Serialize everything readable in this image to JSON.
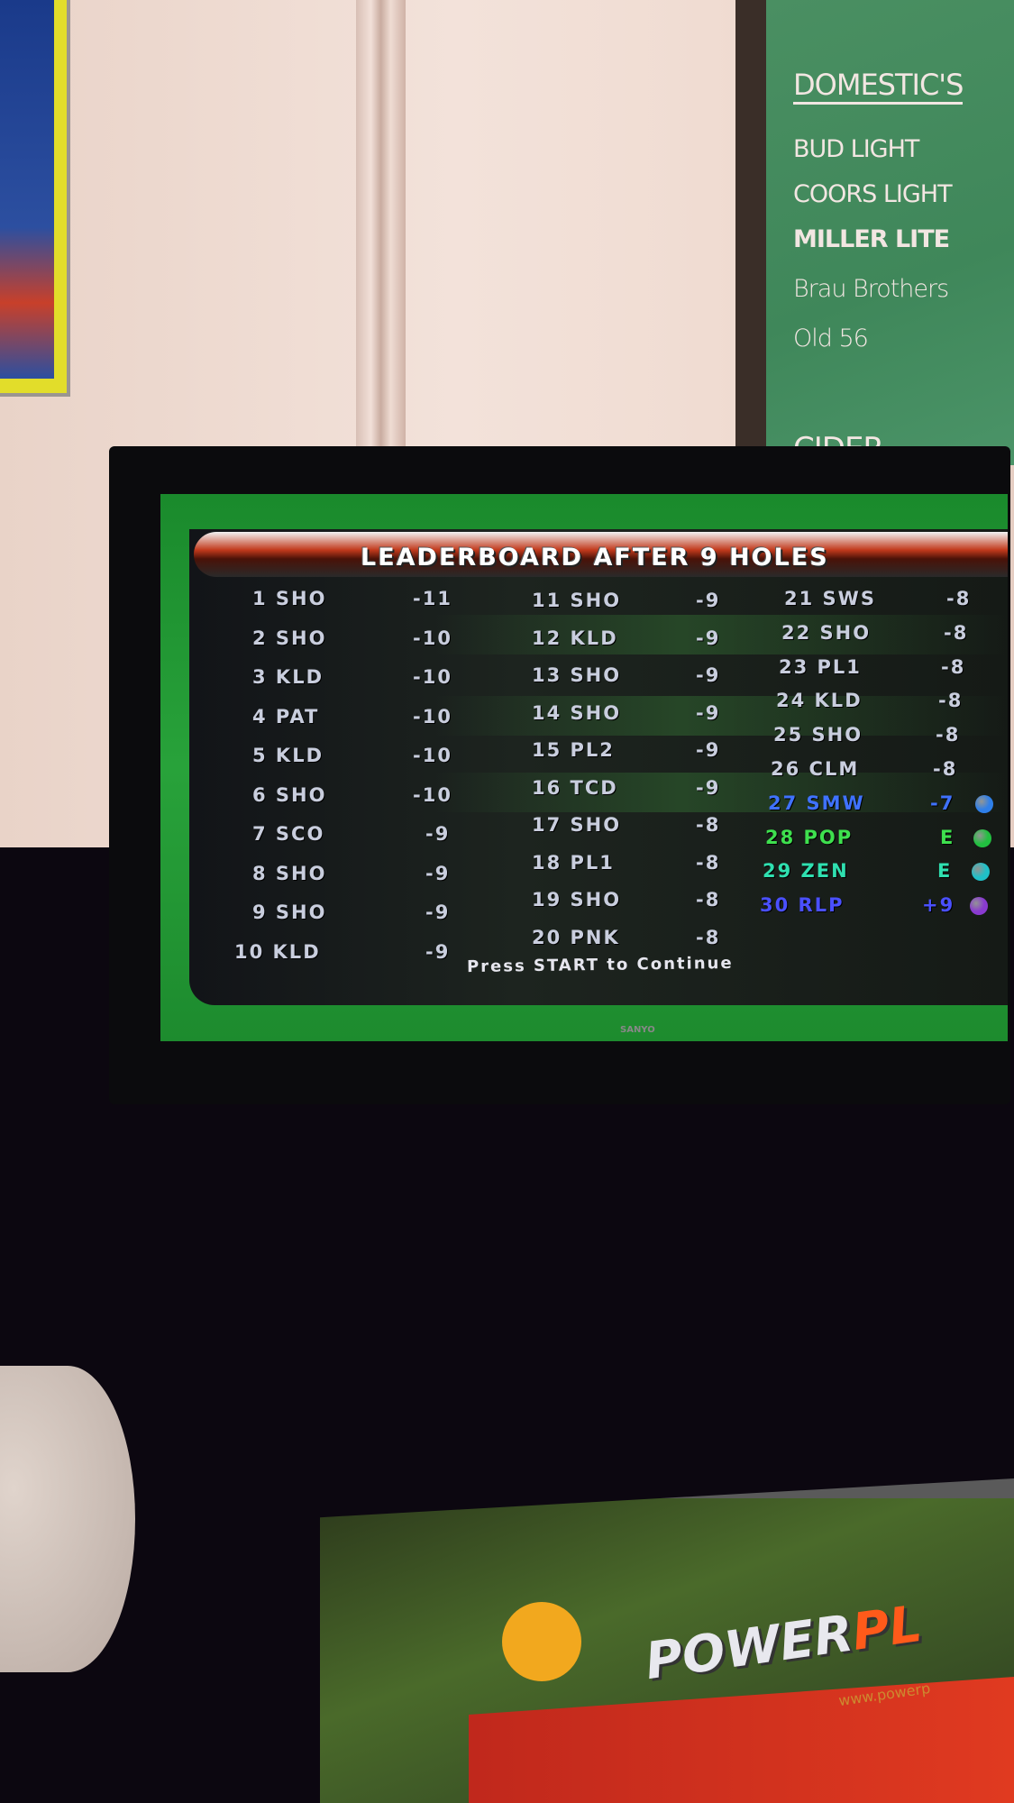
{
  "chalkboard": {
    "heading": "DOMESTIC'S",
    "items": [
      "BUD LIGHT",
      "COORS LIGHT",
      "MILLER LITE",
      "Brau Brothers",
      "Old 56"
    ],
    "next_heading": "CIDER"
  },
  "screen": {
    "title": "LEADERBOARD AFTER 9 HOLES",
    "prompt": "Press START to Continue",
    "columns": [
      [
        {
          "rank": "1",
          "name": "SHO",
          "score": "-11"
        },
        {
          "rank": "2",
          "name": "SHO",
          "score": "-10"
        },
        {
          "rank": "3",
          "name": "KLD",
          "score": "-10"
        },
        {
          "rank": "4",
          "name": "PAT",
          "score": "-10"
        },
        {
          "rank": "5",
          "name": "KLD",
          "score": "-10"
        },
        {
          "rank": "6",
          "name": "SHO",
          "score": "-10"
        },
        {
          "rank": "7",
          "name": "SCO",
          "score": "-9"
        },
        {
          "rank": "8",
          "name": "SHO",
          "score": "-9"
        },
        {
          "rank": "9",
          "name": "SHO",
          "score": "-9"
        },
        {
          "rank": "10",
          "name": "KLD",
          "score": "-9"
        }
      ],
      [
        {
          "rank": "11",
          "name": "SHO",
          "score": "-9"
        },
        {
          "rank": "12",
          "name": "KLD",
          "score": "-9"
        },
        {
          "rank": "13",
          "name": "SHO",
          "score": "-9"
        },
        {
          "rank": "14",
          "name": "SHO",
          "score": "-9"
        },
        {
          "rank": "15",
          "name": "PL2",
          "score": "-9"
        },
        {
          "rank": "16",
          "name": "TCD",
          "score": "-9"
        },
        {
          "rank": "17",
          "name": "SHO",
          "score": "-8"
        },
        {
          "rank": "18",
          "name": "PL1",
          "score": "-8"
        },
        {
          "rank": "19",
          "name": "SHO",
          "score": "-8"
        },
        {
          "rank": "20",
          "name": "PNK",
          "score": "-8"
        }
      ],
      [
        {
          "rank": "21",
          "name": "SWS",
          "score": "-8"
        },
        {
          "rank": "22",
          "name": "SHO",
          "score": "-8"
        },
        {
          "rank": "23",
          "name": "PL1",
          "score": "-8"
        },
        {
          "rank": "24",
          "name": "KLD",
          "score": "-8"
        },
        {
          "rank": "25",
          "name": "SHO",
          "score": "-8"
        },
        {
          "rank": "26",
          "name": "CLM",
          "score": "-8"
        },
        {
          "rank": "27",
          "name": "SMW",
          "score": "-7",
          "color": "#3f72ff",
          "ball": "#2f7fe8"
        },
        {
          "rank": "28",
          "name": "POP",
          "score": "E",
          "color": "#3ee04e",
          "ball": "#22c040"
        },
        {
          "rank": "29",
          "name": "ZEN",
          "score": "E",
          "color": "#2fe0b0",
          "ball": "#20c0c8"
        },
        {
          "rank": "30",
          "name": "RLP",
          "score": "+9",
          "color": "#4a50ff",
          "ball": "#8a3ad0"
        }
      ]
    ]
  },
  "monitor": {
    "brand": "SANYO"
  },
  "cabinet": {
    "logo_main": "POWER",
    "logo_accent": "PL",
    "url": "www.powerp"
  }
}
